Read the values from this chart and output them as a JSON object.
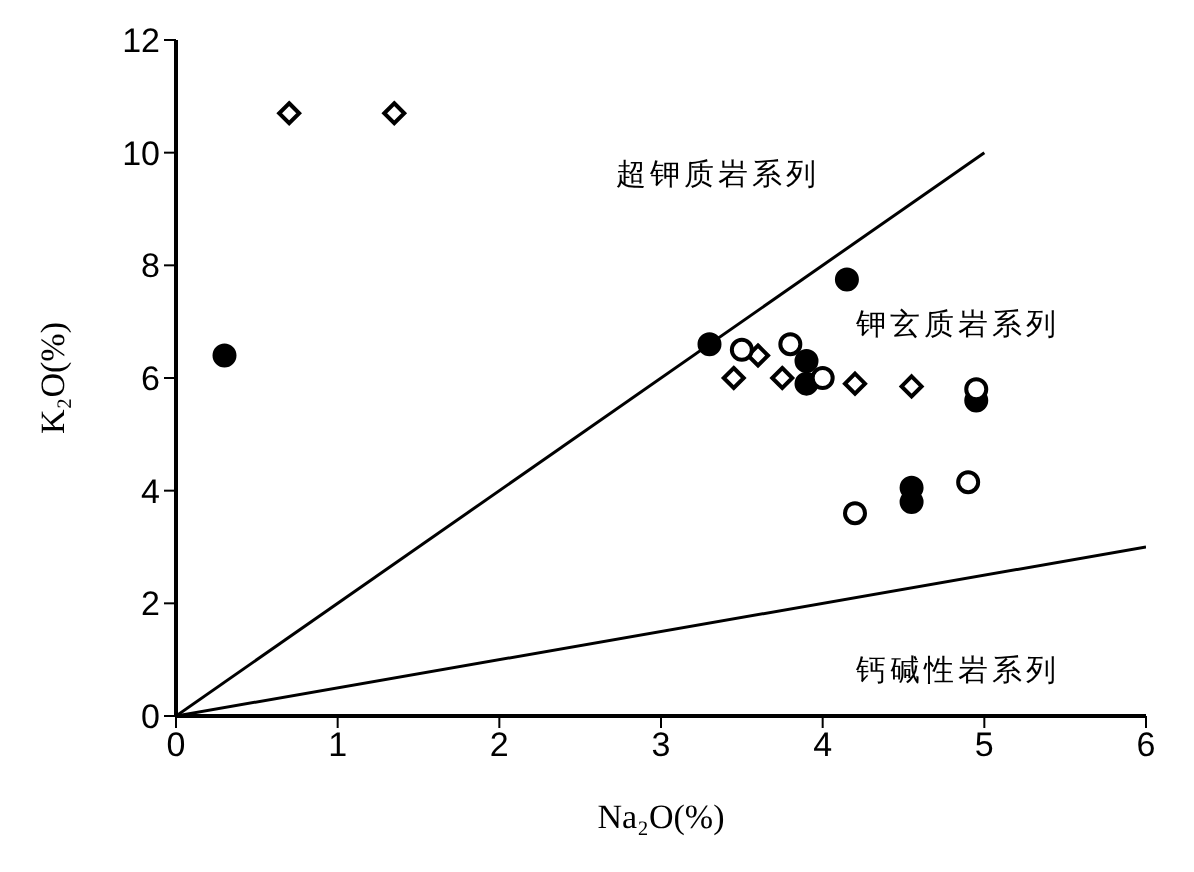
{
  "chart_data": {
    "type": "scatter",
    "xlabel": "Na₂O(%)",
    "ylabel": "K₂O(%)",
    "xlim": [
      0,
      6
    ],
    "ylim": [
      0,
      12
    ],
    "xticks": [
      0,
      1,
      2,
      3,
      4,
      5,
      6
    ],
    "yticks": [
      0,
      2,
      4,
      6,
      8,
      10,
      12
    ],
    "annotations": [
      "超钾质岩系列",
      "钾玄质岩系列",
      "钙碱性岩系列"
    ],
    "series": [
      {
        "marker": "diamond",
        "color": "#ffffff",
        "x": [
          0.7,
          1.35,
          3.45,
          3.6,
          3.75,
          4.2,
          4.55
        ],
        "values": [
          10.7,
          10.7,
          6.0,
          6.4,
          6.0,
          5.9,
          5.85
        ]
      },
      {
        "marker": "circle",
        "color": "#000000",
        "x": [
          0.3,
          3.3,
          3.9,
          3.9,
          4.15,
          4.55,
          4.55,
          4.95
        ],
        "values": [
          6.4,
          6.6,
          5.9,
          6.3,
          7.75,
          4.05,
          3.8,
          5.6
        ]
      },
      {
        "marker": "circle",
        "color": "#ffffff",
        "x": [
          3.5,
          3.8,
          4.0,
          4.2,
          4.9,
          4.95
        ],
        "values": [
          6.5,
          6.6,
          6.0,
          3.6,
          4.15,
          5.8
        ]
      },
      {
        "type": "line",
        "marker": "none",
        "color": "#000000",
        "x": [
          0,
          5
        ],
        "values": [
          0,
          10
        ]
      },
      {
        "type": "line",
        "marker": "none",
        "color": "#000000",
        "x": [
          0,
          6
        ],
        "values": [
          0,
          3
        ]
      }
    ]
  }
}
